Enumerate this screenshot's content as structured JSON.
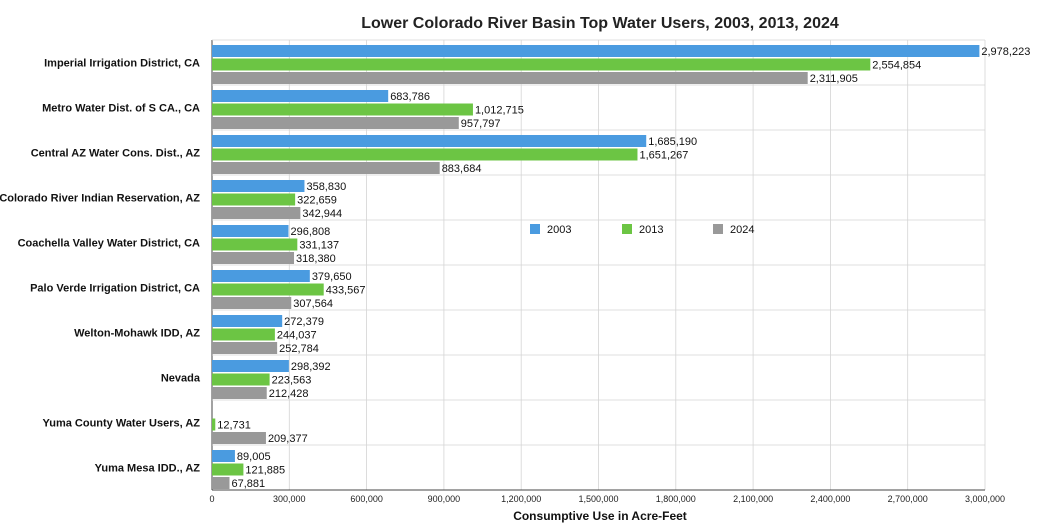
{
  "chart_data": {
    "type": "bar",
    "orientation": "horizontal",
    "title": "Lower Colorado River Basin Top Water Users, 2003, 2013, 2024",
    "xlabel": "Consumptive Use in Acre-Feet",
    "ylabel": "",
    "xlim": [
      0,
      3000000
    ],
    "grid": true,
    "legend_position": "center-right",
    "ticks": [
      {
        "value": 0,
        "label": "0"
      },
      {
        "value": 300000,
        "label": "300,000"
      },
      {
        "value": 600000,
        "label": "600,000"
      },
      {
        "value": 900000,
        "label": "900,000"
      },
      {
        "value": 1200000,
        "label": "1,200,000"
      },
      {
        "value": 1500000,
        "label": "1,500,000"
      },
      {
        "value": 1800000,
        "label": "1,800,000"
      },
      {
        "value": 2100000,
        "label": "2,100,000"
      },
      {
        "value": 2400000,
        "label": "2,400,000"
      },
      {
        "value": 2700000,
        "label": "2,700,000"
      },
      {
        "value": 3000000,
        "label": "3,000,000"
      }
    ],
    "categories": [
      "Imperial Irrigation District, CA",
      "Metro Water Dist. of S CA., CA",
      "Central AZ Water Cons. Dist., AZ",
      "Colorado River Indian Reservation, AZ",
      "Coachella Valley Water District, CA",
      "Palo Verde Irrigation District, CA",
      "Welton-Mohawk IDD, AZ",
      "Nevada",
      "Yuma County Water Users, AZ",
      "Yuma Mesa IDD., AZ"
    ],
    "series": [
      {
        "name": "2003",
        "color": "#4a9be0",
        "values": [
          2978223,
          683786,
          1685190,
          358830,
          296808,
          379650,
          272379,
          298392,
          null,
          89005
        ],
        "labels": [
          "2,978,223",
          "683,786",
          "1,685,190",
          "358,830",
          "296,808",
          "379,650",
          "272,379",
          "298,392",
          "",
          "89,005"
        ]
      },
      {
        "name": "2013",
        "color": "#6cc544",
        "values": [
          2554854,
          1012715,
          1651267,
          322659,
          331137,
          433567,
          244037,
          223563,
          12731,
          121885
        ],
        "labels": [
          "2,554,854",
          "1,012,715",
          "1,651,267",
          "322,659",
          "331,137",
          "433,567",
          "244,037",
          "223,563",
          "12,731",
          "121,885"
        ]
      },
      {
        "name": "2024",
        "color": "#999999",
        "values": [
          2311905,
          957797,
          883684,
          342944,
          318380,
          307564,
          252784,
          212428,
          209377,
          67881
        ],
        "labels": [
          "2,311,905",
          "957,797",
          "883,684",
          "342,944",
          "318,380",
          "307,564",
          "252,784",
          "212,428",
          "209,377",
          "67,881"
        ]
      }
    ]
  }
}
